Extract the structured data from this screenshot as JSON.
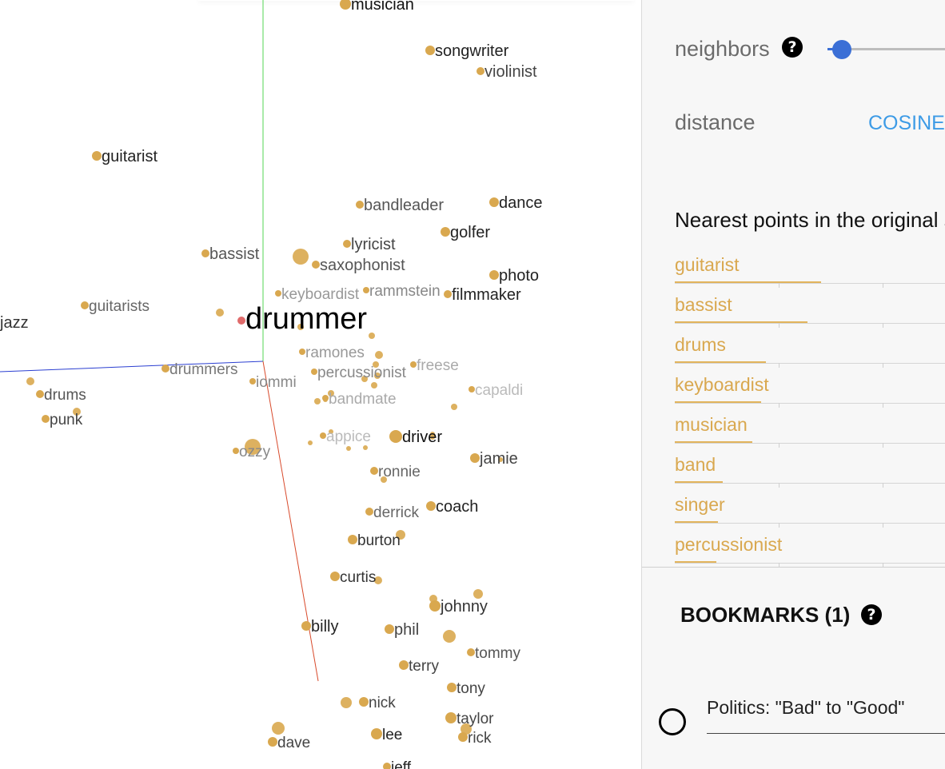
{
  "projection": {
    "selected": {
      "label": "drummer",
      "color": "#e06b6b"
    },
    "point_color": "#d9a84f",
    "labeled_points": [
      {
        "label": "musician",
        "shade": "#111111"
      },
      {
        "label": "songwriter",
        "shade": "#222222"
      },
      {
        "label": "violinist",
        "shade": "#444444"
      },
      {
        "label": "guitarist",
        "shade": "#222222"
      },
      {
        "label": "bandleader",
        "shade": "#555555"
      },
      {
        "label": "dance",
        "shade": "#222222"
      },
      {
        "label": "golfer",
        "shade": "#222222"
      },
      {
        "label": "lyricist",
        "shade": "#444444"
      },
      {
        "label": "bassist",
        "shade": "#555555"
      },
      {
        "label": "saxophonist",
        "shade": "#555555"
      },
      {
        "label": "photo",
        "shade": "#222222"
      },
      {
        "label": "keyboardist",
        "shade": "#999999"
      },
      {
        "label": "rammstein",
        "shade": "#888888"
      },
      {
        "label": "filmmaker",
        "shade": "#222222"
      },
      {
        "label": "guitarists",
        "shade": "#666666"
      },
      {
        "label": "jazz",
        "shade": "#333333"
      },
      {
        "label": "ramones",
        "shade": "#999999"
      },
      {
        "label": "drummers",
        "shade": "#777777"
      },
      {
        "label": "percussionist",
        "shade": "#888888"
      },
      {
        "label": "freese",
        "shade": "#aaaaaa"
      },
      {
        "label": "iommi",
        "shade": "#888888"
      },
      {
        "label": "capaldi",
        "shade": "#bbbbbb"
      },
      {
        "label": "drums",
        "shade": "#555555"
      },
      {
        "label": "bandmate",
        "shade": "#aaaaaa"
      },
      {
        "label": "punk",
        "shade": "#444444"
      },
      {
        "label": "appice",
        "shade": "#bbbbbb"
      },
      {
        "label": "driver",
        "shade": "#111111"
      },
      {
        "label": "ozzy",
        "shade": "#888888"
      },
      {
        "label": "jamie",
        "shade": "#444444"
      },
      {
        "label": "ronnie",
        "shade": "#666666"
      },
      {
        "label": "derrick",
        "shade": "#666666"
      },
      {
        "label": "coach",
        "shade": "#222222"
      },
      {
        "label": "burton",
        "shade": "#333333"
      },
      {
        "label": "curtis",
        "shade": "#333333"
      },
      {
        "label": "johnny",
        "shade": "#333333"
      },
      {
        "label": "billy",
        "shade": "#222222"
      },
      {
        "label": "phil",
        "shade": "#444444"
      },
      {
        "label": "tommy",
        "shade": "#555555"
      },
      {
        "label": "terry",
        "shade": "#444444"
      },
      {
        "label": "tony",
        "shade": "#444444"
      },
      {
        "label": "nick",
        "shade": "#444444"
      },
      {
        "label": "taylor",
        "shade": "#444444"
      },
      {
        "label": "lee",
        "shade": "#222222"
      },
      {
        "label": "rick",
        "shade": "#444444"
      },
      {
        "label": "dave",
        "shade": "#444444"
      },
      {
        "label": "jeff",
        "shade": "#222222"
      }
    ],
    "axis_colors": {
      "x": "#2b3fd1",
      "y": "#55d655",
      "z": "#d84a2b"
    }
  },
  "panel": {
    "neighbors_label": "neighbors",
    "help_glyph": "?",
    "distance_label": "distance",
    "distance_value": "COSINE",
    "nearest_title": "Nearest points in the original space:",
    "nearest": [
      {
        "label": "guitarist",
        "fraction": 0.85
      },
      {
        "label": "bassist",
        "fraction": 0.77
      },
      {
        "label": "drums",
        "fraction": 0.53
      },
      {
        "label": "keyboardist",
        "fraction": 0.5
      },
      {
        "label": "musician",
        "fraction": 0.45
      },
      {
        "label": "band",
        "fraction": 0.28
      },
      {
        "label": "singer",
        "fraction": 0.25
      },
      {
        "label": "percussionist",
        "fraction": 0.24
      }
    ],
    "bookmarks_title": "BOOKMARKS (1)",
    "bookmark_label": "Politics: \"Bad\" to \"Good\""
  }
}
